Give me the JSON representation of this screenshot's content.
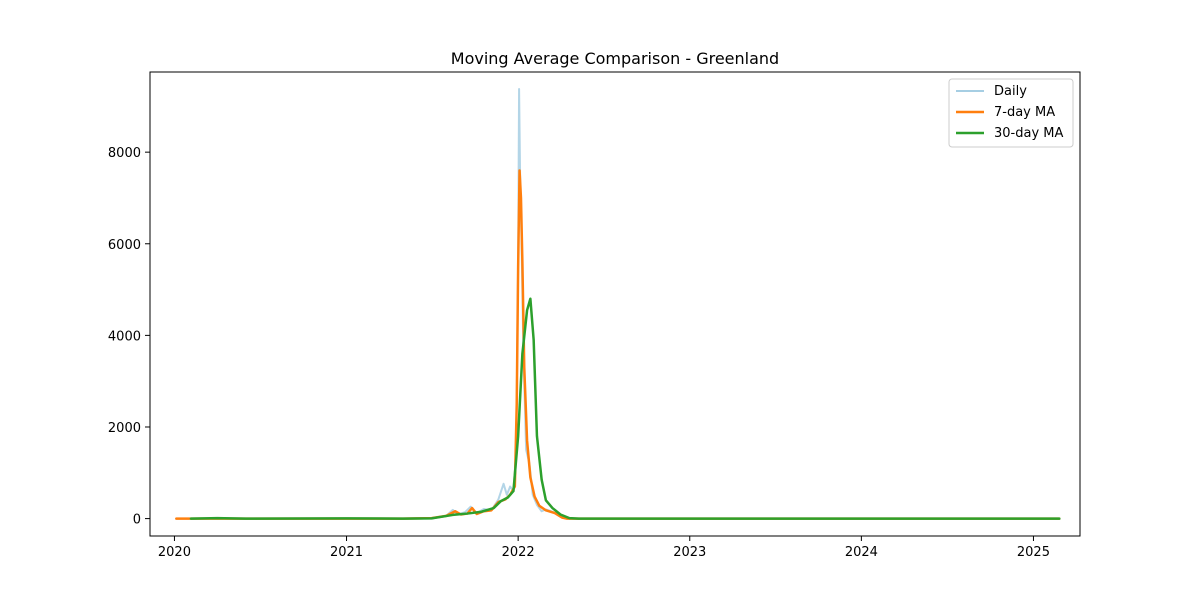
{
  "chart_data": {
    "type": "line",
    "title": "Moving Average Comparison - Greenland",
    "xlabel": "",
    "ylabel": "",
    "x_range": [
      "2019-11-10",
      "2025-04-10"
    ],
    "ylim": [
      -380,
      9750
    ],
    "x_ticks": [
      {
        "date": "2020-01-01",
        "label": "2020"
      },
      {
        "date": "2021-01-01",
        "label": "2021"
      },
      {
        "date": "2022-01-01",
        "label": "2022"
      },
      {
        "date": "2023-01-01",
        "label": "2023"
      },
      {
        "date": "2024-01-01",
        "label": "2024"
      },
      {
        "date": "2025-01-01",
        "label": "2025"
      }
    ],
    "y_ticks": [
      {
        "value": 0,
        "label": "0"
      },
      {
        "value": 2000,
        "label": "2000"
      },
      {
        "value": 4000,
        "label": "4000"
      },
      {
        "value": 6000,
        "label": "6000"
      },
      {
        "value": 8000,
        "label": "8000"
      }
    ],
    "grid": false,
    "legend_position": "top-right",
    "series": [
      {
        "name": "Daily",
        "color": "#a6cee3",
        "points": [
          [
            "2020-01-05",
            0
          ],
          [
            "2020-06-01",
            0
          ],
          [
            "2021-01-01",
            0
          ],
          [
            "2021-05-01",
            0
          ],
          [
            "2021-07-01",
            10
          ],
          [
            "2021-08-01",
            60
          ],
          [
            "2021-08-15",
            190
          ],
          [
            "2021-08-25",
            90
          ],
          [
            "2021-09-10",
            140
          ],
          [
            "2021-09-22",
            260
          ],
          [
            "2021-10-05",
            120
          ],
          [
            "2021-10-20",
            210
          ],
          [
            "2021-11-05",
            180
          ],
          [
            "2021-11-20",
            420
          ],
          [
            "2021-12-01",
            760
          ],
          [
            "2021-12-08",
            520
          ],
          [
            "2021-12-15",
            700
          ],
          [
            "2021-12-22",
            600
          ],
          [
            "2021-12-28",
            1500
          ],
          [
            "2022-01-01",
            5600
          ],
          [
            "2022-01-03",
            9380
          ],
          [
            "2022-01-05",
            7600
          ],
          [
            "2022-01-08",
            6200
          ],
          [
            "2022-01-12",
            3700
          ],
          [
            "2022-01-18",
            1500
          ],
          [
            "2022-01-25",
            1200
          ],
          [
            "2022-02-01",
            520
          ],
          [
            "2022-02-10",
            300
          ],
          [
            "2022-02-20",
            160
          ],
          [
            "2022-03-01",
            200
          ],
          [
            "2022-03-15",
            150
          ],
          [
            "2022-04-01",
            40
          ],
          [
            "2022-04-15",
            0
          ],
          [
            "2022-06-01",
            0
          ],
          [
            "2023-01-01",
            0
          ],
          [
            "2024-01-01",
            0
          ],
          [
            "2025-02-25",
            0
          ]
        ]
      },
      {
        "name": "7-day MA",
        "color": "#ff7f0e",
        "points": [
          [
            "2020-01-05",
            0
          ],
          [
            "2020-06-01",
            0
          ],
          [
            "2021-01-01",
            0
          ],
          [
            "2021-05-01",
            0
          ],
          [
            "2021-07-01",
            10
          ],
          [
            "2021-08-01",
            60
          ],
          [
            "2021-08-20",
            160
          ],
          [
            "2021-09-01",
            90
          ],
          [
            "2021-09-15",
            110
          ],
          [
            "2021-09-25",
            230
          ],
          [
            "2021-10-05",
            100
          ],
          [
            "2021-10-20",
            160
          ],
          [
            "2021-11-05",
            180
          ],
          [
            "2021-11-20",
            360
          ],
          [
            "2021-12-05",
            420
          ],
          [
            "2021-12-15",
            520
          ],
          [
            "2021-12-25",
            700
          ],
          [
            "2021-12-29",
            2500
          ],
          [
            "2022-01-01",
            5500
          ],
          [
            "2022-01-04",
            7600
          ],
          [
            "2022-01-07",
            7000
          ],
          [
            "2022-01-10",
            5600
          ],
          [
            "2022-01-14",
            3300
          ],
          [
            "2022-01-20",
            1700
          ],
          [
            "2022-01-27",
            900
          ],
          [
            "2022-02-05",
            480
          ],
          [
            "2022-02-15",
            280
          ],
          [
            "2022-03-01",
            180
          ],
          [
            "2022-03-20",
            120
          ],
          [
            "2022-04-05",
            20
          ],
          [
            "2022-04-15",
            0
          ],
          [
            "2022-06-01",
            0
          ],
          [
            "2023-01-01",
            0
          ],
          [
            "2024-01-01",
            0
          ],
          [
            "2025-02-25",
            0
          ]
        ]
      },
      {
        "name": "30-day MA",
        "color": "#2ca02c",
        "points": [
          [
            "2020-02-05",
            0
          ],
          [
            "2020-04-01",
            10
          ],
          [
            "2020-06-01",
            0
          ],
          [
            "2021-01-01",
            5
          ],
          [
            "2021-05-01",
            0
          ],
          [
            "2021-07-01",
            5
          ],
          [
            "2021-08-15",
            80
          ],
          [
            "2021-09-15",
            110
          ],
          [
            "2021-10-15",
            150
          ],
          [
            "2021-11-10",
            230
          ],
          [
            "2021-11-25",
            380
          ],
          [
            "2021-12-10",
            460
          ],
          [
            "2021-12-22",
            600
          ],
          [
            "2022-01-01",
            1800
          ],
          [
            "2022-01-10",
            3600
          ],
          [
            "2022-01-20",
            4550
          ],
          [
            "2022-01-27",
            4800
          ],
          [
            "2022-02-03",
            3900
          ],
          [
            "2022-02-10",
            1800
          ],
          [
            "2022-02-20",
            850
          ],
          [
            "2022-03-01",
            400
          ],
          [
            "2022-03-15",
            230
          ],
          [
            "2022-04-01",
            90
          ],
          [
            "2022-04-20",
            10
          ],
          [
            "2022-05-10",
            0
          ],
          [
            "2023-01-01",
            0
          ],
          [
            "2024-01-01",
            0
          ],
          [
            "2025-02-25",
            0
          ]
        ]
      }
    ]
  }
}
